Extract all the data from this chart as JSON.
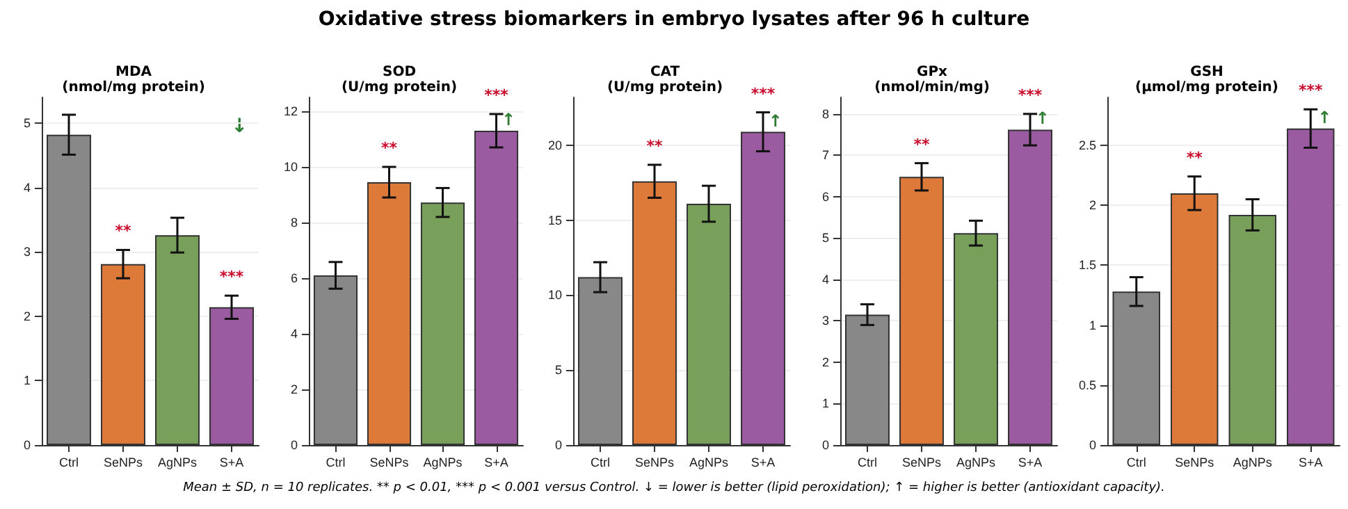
{
  "chart_data": [
    {
      "type": "bar",
      "title": "MDA",
      "subtitle": "(nmol/mg protein)",
      "categories": [
        "Ctrl",
        "SeNPs",
        "AgNPs",
        "S+A"
      ],
      "values": [
        4.82,
        2.81,
        3.26,
        2.14
      ],
      "errors": [
        0.31,
        0.22,
        0.27,
        0.18
      ],
      "colors": [
        "#888888",
        "#dd7a3a",
        "#79a05a",
        "#9b5ba0"
      ],
      "ylim": [
        0,
        5.4
      ],
      "yticks": [
        0,
        1,
        2,
        3,
        4,
        5
      ],
      "grid": "y",
      "annotations": [
        "Oxidative stress biomarkers in embryo lysates after 96 h culture",
        "Mean ± SD, n = 10 replicates.  ** p < 0.01, *** p < 0.001 versus Control.  ↓ = lower is better (lipid peroxidation);  ↑ = higher is better (antioxidant capacity).",
        "↓",
        {
          "text": "**",
          "x": "SeNPs",
          "y": 2.81
        },
        {
          "text": "***",
          "x": "S+A",
          "y": 2.14
        }
      ]
    },
    {
      "type": "bar",
      "title": "SOD",
      "subtitle": "(U/mg protein)",
      "categories": [
        "Ctrl",
        "SeNPs",
        "AgNPs",
        "S+A"
      ],
      "values": [
        6.1,
        9.45,
        8.72,
        11.3
      ],
      "errors": [
        0.48,
        0.55,
        0.52,
        0.6
      ],
      "colors": [
        "#888888",
        "#dd7a3a",
        "#79a05a",
        "#9b5ba0"
      ],
      "ylim": [
        0,
        12.5
      ],
      "yticks": [
        0,
        2,
        4,
        6,
        8,
        10,
        12
      ],
      "grid": "y",
      "annotations": [
        {
          "text": "**",
          "x": "SeNPs",
          "y": 9.45
        },
        {
          "text": "***",
          "x": "S+A",
          "y": 11.3
        },
        {
          "text": "↑",
          "x": "S+A",
          "y": 11.3
        }
      ]
    },
    {
      "type": "bar",
      "title": "CAT",
      "subtitle": "(U/mg protein)",
      "categories": [
        "Ctrl",
        "SeNPs",
        "AgNPs",
        "S+A"
      ],
      "values": [
        11.2,
        17.6,
        16.1,
        20.9
      ],
      "errors": [
        1.0,
        1.1,
        1.2,
        1.3
      ],
      "colors": [
        "#888888",
        "#dd7a3a",
        "#79a05a",
        "#9b5ba0"
      ],
      "ylim": [
        0,
        23.2
      ],
      "yticks": [
        0,
        5,
        10,
        15,
        20
      ],
      "grid": "y",
      "annotations": [
        {
          "text": "**",
          "x": "SeNPs",
          "y": 17.6
        },
        {
          "text": "***",
          "x": "S+A",
          "y": 20.9
        },
        {
          "text": "↑",
          "x": "S+A",
          "y": 20.9
        }
      ]
    },
    {
      "type": "bar",
      "title": "GPx",
      "subtitle": "(nmol/min/mg)",
      "categories": [
        "Ctrl",
        "SeNPs",
        "AgNPs",
        "S+A"
      ],
      "values": [
        3.15,
        6.48,
        5.12,
        7.62
      ],
      "errors": [
        0.25,
        0.33,
        0.3,
        0.38
      ],
      "colors": [
        "#888888",
        "#dd7a3a",
        "#79a05a",
        "#9b5ba0"
      ],
      "ylim": [
        0,
        8.4
      ],
      "yticks": [
        0,
        1,
        2,
        3,
        4,
        5,
        6,
        7,
        8
      ],
      "grid": "y",
      "annotations": [
        {
          "text": "**",
          "x": "SeNPs",
          "y": 6.48
        },
        {
          "text": "***",
          "x": "S+A",
          "y": 7.62
        },
        {
          "text": "↑",
          "x": "S+A",
          "y": 7.62
        }
      ]
    },
    {
      "type": "bar",
      "title": "GSH",
      "subtitle": "(μmol/mg protein)",
      "categories": [
        "Ctrl",
        "SeNPs",
        "AgNPs",
        "S+A"
      ],
      "values": [
        1.28,
        2.1,
        1.92,
        2.64
      ],
      "errors": [
        0.12,
        0.14,
        0.13,
        0.16
      ],
      "colors": [
        "#888888",
        "#dd7a3a",
        "#79a05a",
        "#9b5ba0"
      ],
      "ylim": [
        0,
        2.9
      ],
      "yticks": [
        0,
        0.5,
        1,
        1.5,
        2,
        2.5
      ],
      "grid": "y",
      "annotations": [
        {
          "text": "**",
          "x": "SeNPs",
          "y": 2.1
        },
        {
          "text": "***",
          "x": "S+A",
          "y": 2.64
        },
        {
          "text": "↑",
          "x": "S+A",
          "y": 2.64
        }
      ]
    }
  ]
}
